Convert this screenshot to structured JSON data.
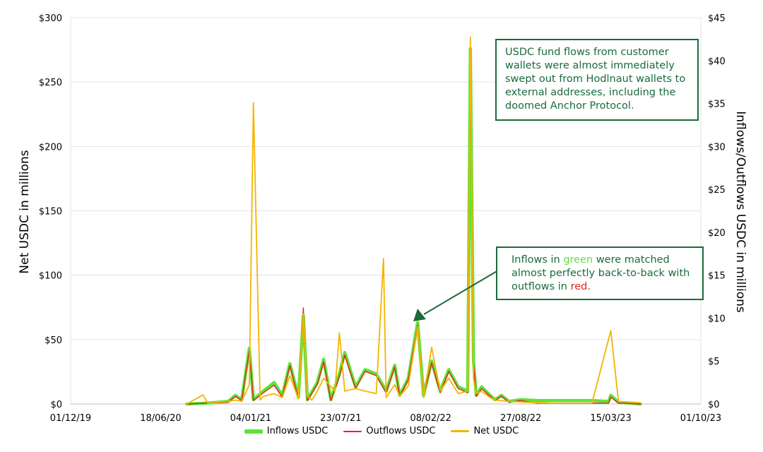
{
  "chart_data": {
    "type": "line",
    "title": "",
    "x_tick_labels": [
      "01/12/19",
      "18/06/20",
      "04/01/21",
      "23/07/21",
      "08/02/22",
      "27/08/22",
      "15/03/23",
      "01/10/23"
    ],
    "xlim": [
      "01/12/19",
      "01/10/23"
    ],
    "y_left": {
      "label": "Net USDC in millions",
      "ylim": [
        0,
        300
      ],
      "tick_labels": [
        "$0",
        "$50",
        "$100",
        "$150",
        "$200",
        "$250",
        "$300"
      ]
    },
    "y_right": {
      "label": "Inflows/Outflows USDC in millions",
      "ylim": [
        0,
        45
      ],
      "tick_labels": [
        "$0",
        "$5",
        "$10",
        "$15",
        "$20",
        "$25",
        "$30",
        "$35",
        "$40",
        "$45"
      ]
    },
    "grid": "horizontal",
    "legend_position": "bottom",
    "colors": {
      "inflows": "#5ee33a",
      "outflows": "#e8231a",
      "net": "#f5b400",
      "annotation": "#1a6b3c"
    },
    "series": [
      {
        "name": "Inflows USDC",
        "axis": "right",
        "x": [
          "15/08/20",
          "01/10/20",
          "15/11/20",
          "01/12/20",
          "15/12/20",
          "01/01/21",
          "10/01/21",
          "01/02/21",
          "25/02/21",
          "15/03/21",
          "01/04/21",
          "20/04/21",
          "01/05/21",
          "10/05/21",
          "01/06/21",
          "15/06/21",
          "01/07/21",
          "20/07/21",
          "01/08/21",
          "25/08/21",
          "15/09/21",
          "10/10/21",
          "01/11/21",
          "20/11/21",
          "01/12/21",
          "20/12/21",
          "10/01/22",
          "23/01/22",
          "10/02/22",
          "01/03/22",
          "20/03/22",
          "10/04/22",
          "01/05/22",
          "07/05/22",
          "14/05/22",
          "20/05/22",
          "01/06/22",
          "20/06/22",
          "01/07/22",
          "15/07/22",
          "01/08/22",
          "27/08/22",
          "01/10/22",
          "01/12/22",
          "01/02/23",
          "10/03/23",
          "15/03/23",
          "01/04/23",
          "20/05/23"
        ],
        "values": [
          0,
          0.1,
          0.3,
          1,
          0.5,
          6.5,
          0.5,
          1.5,
          2.5,
          1,
          4.7,
          0.8,
          10.3,
          0.5,
          2.5,
          5.2,
          0.5,
          3.5,
          6,
          2,
          4,
          3.5,
          1.5,
          4.5,
          1,
          3,
          9.5,
          1,
          5,
          1.5,
          4,
          2,
          1.5,
          41.4,
          5,
          1,
          2,
          1,
          0.5,
          1,
          0.3,
          0.5,
          0.4,
          0.4,
          0.4,
          0.3,
          1,
          0.2,
          0
        ]
      },
      {
        "name": "Outflows USDC",
        "axis": "right",
        "x": [
          "15/08/20",
          "01/10/20",
          "15/11/20",
          "01/12/20",
          "15/12/20",
          "01/01/21",
          "10/01/21",
          "01/02/21",
          "25/02/21",
          "15/03/21",
          "01/04/21",
          "20/04/21",
          "01/05/21",
          "10/05/21",
          "01/06/21",
          "15/06/21",
          "01/07/21",
          "20/07/21",
          "01/08/21",
          "25/08/21",
          "15/09/21",
          "10/10/21",
          "01/11/21",
          "20/11/21",
          "01/12/21",
          "20/12/21",
          "10/01/22",
          "23/01/22",
          "10/02/22",
          "01/03/22",
          "20/03/22",
          "10/04/22",
          "01/05/22",
          "07/05/22",
          "14/05/22",
          "20/05/22",
          "01/06/22",
          "20/06/22",
          "01/07/22",
          "15/07/22",
          "01/08/22",
          "27/08/22",
          "01/10/22",
          "01/12/22",
          "01/02/23",
          "10/03/23",
          "15/03/23",
          "01/04/23",
          "20/05/23"
        ],
        "values": [
          0,
          0.1,
          0.2,
          0.9,
          0.4,
          6.2,
          0.4,
          1.3,
          2.2,
          0.8,
          4.5,
          0.6,
          11.2,
          0.4,
          2.3,
          4.9,
          0.4,
          3.2,
          5.7,
          1.8,
          3.8,
          3.3,
          1.3,
          4.3,
          0.9,
          2.8,
          9.2,
          0.9,
          4.8,
          1.3,
          3.8,
          1.8,
          1.3,
          40.5,
          4.8,
          0.9,
          1.8,
          0.9,
          0.4,
          0.9,
          0.2,
          0.4,
          0.1,
          0.1,
          0.1,
          0.1,
          0.8,
          0.1,
          0
        ]
      },
      {
        "name": "Net USDC",
        "axis": "left",
        "x": [
          "15/08/20",
          "20/09/20",
          "01/10/20",
          "15/11/20",
          "01/12/20",
          "15/12/20",
          "01/01/21",
          "10/01/21",
          "25/01/21",
          "01/02/21",
          "25/02/21",
          "15/03/21",
          "01/04/21",
          "20/04/21",
          "01/05/21",
          "10/05/21",
          "20/05/21",
          "01/06/21",
          "15/06/21",
          "10/07/21",
          "20/07/21",
          "01/08/21",
          "25/08/21",
          "15/09/21",
          "10/10/21",
          "26/10/21",
          "01/11/21",
          "20/11/21",
          "01/12/21",
          "20/12/21",
          "10/01/22",
          "23/01/22",
          "10/02/22",
          "01/03/22",
          "20/03/22",
          "10/04/22",
          "01/05/22",
          "07/05/22",
          "14/05/22",
          "20/05/22",
          "01/06/22",
          "20/06/22",
          "01/07/22",
          "01/08/22",
          "01/10/22",
          "01/12/22",
          "01/02/23",
          "15/03/23",
          "01/04/23",
          "20/05/23"
        ],
        "values": [
          0,
          7,
          0.5,
          2,
          3,
          2,
          15,
          234,
          3,
          6,
          8,
          5,
          22,
          4,
          70,
          6,
          3,
          10,
          20,
          10,
          55,
          10,
          12,
          10,
          8,
          113,
          5,
          15,
          6,
          14,
          60,
          5,
          44,
          10,
          20,
          8,
          10,
          285,
          20,
          8,
          10,
          5,
          3,
          2,
          1,
          0.5,
          0.5,
          57,
          2,
          1
        ]
      }
    ]
  },
  "annotations": [
    {
      "text": "USDC fund flows from customer wallets were almost immediately swept out from Hodlnaut wallets to external addresses, including the doomed Anchor Protocol."
    },
    {
      "text_before": "Inflows in ",
      "green_word": "green",
      "text_middle": " were matched almost perfectly back-to-back with outflows in ",
      "red_word": "red",
      "text_after": "."
    }
  ]
}
